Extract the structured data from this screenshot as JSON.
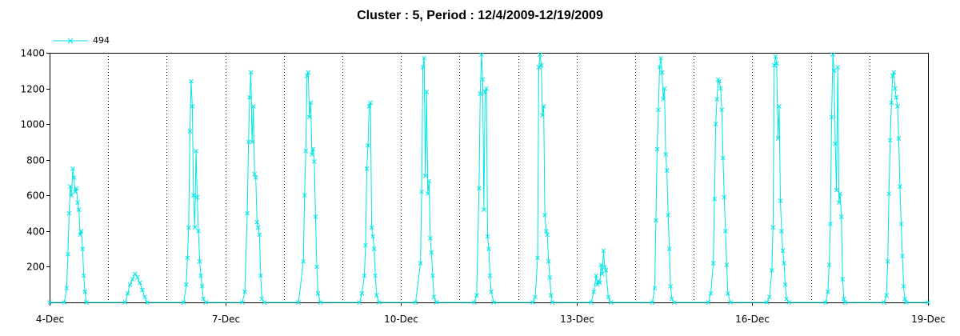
{
  "chart_data": {
    "type": "line",
    "title": "Cluster : 5, Period : 12/4/2009-12/19/2009",
    "xlabel": "",
    "ylabel": "",
    "x_unit": "date",
    "x_range": [
      "2009-12-04",
      "2009-12-19"
    ],
    "x_tick_labels": [
      "4-Dec",
      "7-Dec",
      "10-Dec",
      "13-Dec",
      "16-Dec",
      "19-Dec"
    ],
    "x_tick_dates": [
      "2009-12-04",
      "2009-12-07",
      "2009-12-10",
      "2009-12-13",
      "2009-12-16",
      "2009-12-19"
    ],
    "ylim": [
      0,
      1400
    ],
    "y_tick_labels": [
      "200",
      "400",
      "600",
      "800",
      "1000",
      "1200",
      "1400"
    ],
    "y_ticks": [
      200,
      400,
      600,
      800,
      1000,
      1200,
      1400
    ],
    "grid": "vertical dotted",
    "legend_position": "top-left",
    "series": [
      {
        "name": "494",
        "color": "#00e5e5",
        "marker": "x",
        "points": [
          [
            "2009-12-04 00:00",
            0
          ],
          [
            "2009-12-04 06:00",
            0
          ],
          [
            "2009-12-04 07:00",
            80
          ],
          [
            "2009-12-04 07:30",
            270
          ],
          [
            "2009-12-04 08:00",
            500
          ],
          [
            "2009-12-04 08:30",
            650
          ],
          [
            "2009-12-04 09:00",
            600
          ],
          [
            "2009-12-04 09:30",
            750
          ],
          [
            "2009-12-04 10:00",
            700
          ],
          [
            "2009-12-04 10:30",
            620
          ],
          [
            "2009-12-04 11:00",
            640
          ],
          [
            "2009-12-04 11:30",
            560
          ],
          [
            "2009-12-04 12:00",
            520
          ],
          [
            "2009-12-04 12:30",
            380
          ],
          [
            "2009-12-04 13:00",
            400
          ],
          [
            "2009-12-04 13:30",
            300
          ],
          [
            "2009-12-04 14:00",
            150
          ],
          [
            "2009-12-04 14:30",
            60
          ],
          [
            "2009-12-04 15:00",
            0
          ],
          [
            "2009-12-05 07:00",
            0
          ],
          [
            "2009-12-05 08:00",
            50
          ],
          [
            "2009-12-05 09:00",
            100
          ],
          [
            "2009-12-05 10:00",
            130
          ],
          [
            "2009-12-05 11:00",
            160
          ],
          [
            "2009-12-05 12:00",
            140
          ],
          [
            "2009-12-05 13:00",
            110
          ],
          [
            "2009-12-05 14:00",
            70
          ],
          [
            "2009-12-05 15:00",
            30
          ],
          [
            "2009-12-05 16:00",
            0
          ],
          [
            "2009-12-06 07:00",
            0
          ],
          [
            "2009-12-06 08:00",
            100
          ],
          [
            "2009-12-06 08:30",
            250
          ],
          [
            "2009-12-06 09:00",
            420
          ],
          [
            "2009-12-06 09:30",
            960
          ],
          [
            "2009-12-06 10:00",
            1240
          ],
          [
            "2009-12-06 10:30",
            1100
          ],
          [
            "2009-12-06 11:00",
            600
          ],
          [
            "2009-12-06 11:30",
            420
          ],
          [
            "2009-12-06 12:00",
            850
          ],
          [
            "2009-12-06 12:30",
            590
          ],
          [
            "2009-12-06 13:00",
            400
          ],
          [
            "2009-12-06 13:30",
            230
          ],
          [
            "2009-12-06 14:00",
            150
          ],
          [
            "2009-12-06 14:30",
            90
          ],
          [
            "2009-12-06 15:00",
            20
          ],
          [
            "2009-12-06 16:00",
            0
          ],
          [
            "2009-12-07 07:00",
            0
          ],
          [
            "2009-12-07 08:00",
            60
          ],
          [
            "2009-12-07 09:00",
            500
          ],
          [
            "2009-12-07 09:30",
            900
          ],
          [
            "2009-12-07 10:00",
            1150
          ],
          [
            "2009-12-07 10:30",
            1290
          ],
          [
            "2009-12-07 11:00",
            900
          ],
          [
            "2009-12-07 11:30",
            1100
          ],
          [
            "2009-12-07 12:00",
            720
          ],
          [
            "2009-12-07 12:30",
            700
          ],
          [
            "2009-12-07 13:00",
            450
          ],
          [
            "2009-12-07 13:30",
            420
          ],
          [
            "2009-12-07 14:00",
            380
          ],
          [
            "2009-12-07 14:30",
            150
          ],
          [
            "2009-12-07 15:00",
            20
          ],
          [
            "2009-12-07 16:00",
            0
          ],
          [
            "2009-12-08 06:00",
            0
          ],
          [
            "2009-12-08 08:00",
            230
          ],
          [
            "2009-12-08 08:30",
            600
          ],
          [
            "2009-12-08 09:00",
            850
          ],
          [
            "2009-12-08 09:30",
            1270
          ],
          [
            "2009-12-08 10:00",
            1290
          ],
          [
            "2009-12-08 10:30",
            1040
          ],
          [
            "2009-12-08 11:00",
            1120
          ],
          [
            "2009-12-08 11:30",
            830
          ],
          [
            "2009-12-08 12:00",
            860
          ],
          [
            "2009-12-08 12:30",
            790
          ],
          [
            "2009-12-08 13:00",
            480
          ],
          [
            "2009-12-08 13:30",
            200
          ],
          [
            "2009-12-08 14:00",
            50
          ],
          [
            "2009-12-08 15:00",
            0
          ],
          [
            "2009-12-09 07:00",
            0
          ],
          [
            "2009-12-09 08:00",
            50
          ],
          [
            "2009-12-09 09:00",
            150
          ],
          [
            "2009-12-09 09:30",
            320
          ],
          [
            "2009-12-09 10:00",
            750
          ],
          [
            "2009-12-09 10:30",
            880
          ],
          [
            "2009-12-09 11:00",
            1100
          ],
          [
            "2009-12-09 11:30",
            1120
          ],
          [
            "2009-12-09 12:00",
            420
          ],
          [
            "2009-12-09 12:30",
            370
          ],
          [
            "2009-12-09 13:00",
            300
          ],
          [
            "2009-12-09 13:30",
            150
          ],
          [
            "2009-12-09 14:00",
            40
          ],
          [
            "2009-12-09 15:00",
            0
          ],
          [
            "2009-12-10 06:00",
            0
          ],
          [
            "2009-12-10 08:00",
            220
          ],
          [
            "2009-12-10 08:30",
            620
          ],
          [
            "2009-12-10 09:00",
            1320
          ],
          [
            "2009-12-10 09:30",
            1370
          ],
          [
            "2009-12-10 10:00",
            710
          ],
          [
            "2009-12-10 10:30",
            1180
          ],
          [
            "2009-12-10 11:00",
            610
          ],
          [
            "2009-12-10 11:30",
            680
          ],
          [
            "2009-12-10 12:00",
            360
          ],
          [
            "2009-12-10 12:30",
            280
          ],
          [
            "2009-12-10 13:00",
            150
          ],
          [
            "2009-12-10 13:30",
            30
          ],
          [
            "2009-12-10 14:30",
            0
          ],
          [
            "2009-12-11 06:00",
            0
          ],
          [
            "2009-12-11 07:00",
            40
          ],
          [
            "2009-12-11 08:00",
            640
          ],
          [
            "2009-12-11 08:30",
            1170
          ],
          [
            "2009-12-11 09:00",
            1390
          ],
          [
            "2009-12-11 09:30",
            1250
          ],
          [
            "2009-12-11 10:00",
            520
          ],
          [
            "2009-12-11 10:30",
            1180
          ],
          [
            "2009-12-11 11:00",
            1200
          ],
          [
            "2009-12-11 11:30",
            370
          ],
          [
            "2009-12-11 12:00",
            300
          ],
          [
            "2009-12-11 12:30",
            150
          ],
          [
            "2009-12-11 13:00",
            60
          ],
          [
            "2009-12-11 14:00",
            0
          ],
          [
            "2009-12-12 06:00",
            0
          ],
          [
            "2009-12-12 07:00",
            30
          ],
          [
            "2009-12-12 08:00",
            250
          ],
          [
            "2009-12-12 08:30",
            1320
          ],
          [
            "2009-12-12 09:00",
            1390
          ],
          [
            "2009-12-12 09:30",
            1330
          ],
          [
            "2009-12-12 10:00",
            1050
          ],
          [
            "2009-12-12 10:30",
            1100
          ],
          [
            "2009-12-12 11:00",
            490
          ],
          [
            "2009-12-12 11:30",
            400
          ],
          [
            "2009-12-12 12:00",
            380
          ],
          [
            "2009-12-12 12:30",
            230
          ],
          [
            "2009-12-12 13:00",
            140
          ],
          [
            "2009-12-12 13:30",
            40
          ],
          [
            "2009-12-12 14:00",
            0
          ],
          [
            "2009-12-13 06:00",
            0
          ],
          [
            "2009-12-13 07:00",
            60
          ],
          [
            "2009-12-13 08:00",
            150
          ],
          [
            "2009-12-13 08:30",
            100
          ],
          [
            "2009-12-13 09:00",
            120
          ],
          [
            "2009-12-13 09:30",
            110
          ],
          [
            "2009-12-13 10:00",
            210
          ],
          [
            "2009-12-13 10:30",
            160
          ],
          [
            "2009-12-13 11:00",
            290
          ],
          [
            "2009-12-13 11:30",
            200
          ],
          [
            "2009-12-13 12:00",
            180
          ],
          [
            "2009-12-13 13:00",
            30
          ],
          [
            "2009-12-13 14:00",
            0
          ],
          [
            "2009-12-14 07:00",
            0
          ],
          [
            "2009-12-14 08:00",
            80
          ],
          [
            "2009-12-14 08:30",
            460
          ],
          [
            "2009-12-14 09:00",
            860
          ],
          [
            "2009-12-14 09:30",
            1080
          ],
          [
            "2009-12-14 10:00",
            1320
          ],
          [
            "2009-12-14 10:30",
            1370
          ],
          [
            "2009-12-14 11:00",
            1290
          ],
          [
            "2009-12-14 11:30",
            1140
          ],
          [
            "2009-12-14 12:00",
            1200
          ],
          [
            "2009-12-14 12:30",
            830
          ],
          [
            "2009-12-14 13:00",
            740
          ],
          [
            "2009-12-14 13:30",
            490
          ],
          [
            "2009-12-14 14:00",
            300
          ],
          [
            "2009-12-14 14:30",
            90
          ],
          [
            "2009-12-14 15:00",
            20
          ],
          [
            "2009-12-14 16:00",
            0
          ],
          [
            "2009-12-15 06:00",
            0
          ],
          [
            "2009-12-15 07:00",
            50
          ],
          [
            "2009-12-15 08:00",
            220
          ],
          [
            "2009-12-15 08:30",
            580
          ],
          [
            "2009-12-15 09:00",
            1000
          ],
          [
            "2009-12-15 09:30",
            1140
          ],
          [
            "2009-12-15 10:00",
            1250
          ],
          [
            "2009-12-15 10:30",
            1240
          ],
          [
            "2009-12-15 11:00",
            1200
          ],
          [
            "2009-12-15 11:30",
            1080
          ],
          [
            "2009-12-15 12:00",
            810
          ],
          [
            "2009-12-15 12:30",
            590
          ],
          [
            "2009-12-15 13:00",
            400
          ],
          [
            "2009-12-15 13:30",
            210
          ],
          [
            "2009-12-15 14:00",
            50
          ],
          [
            "2009-12-15 15:00",
            0
          ],
          [
            "2009-12-16 06:00",
            0
          ],
          [
            "2009-12-16 07:00",
            30
          ],
          [
            "2009-12-16 08:00",
            180
          ],
          [
            "2009-12-16 08:30",
            420
          ],
          [
            "2009-12-16 09:00",
            1330
          ],
          [
            "2009-12-16 09:30",
            1380
          ],
          [
            "2009-12-16 10:00",
            1340
          ],
          [
            "2009-12-16 10:30",
            920
          ],
          [
            "2009-12-16 11:00",
            1100
          ],
          [
            "2009-12-16 11:30",
            570
          ],
          [
            "2009-12-16 12:00",
            400
          ],
          [
            "2009-12-16 12:30",
            290
          ],
          [
            "2009-12-16 13:00",
            220
          ],
          [
            "2009-12-16 13:30",
            100
          ],
          [
            "2009-12-16 14:00",
            20
          ],
          [
            "2009-12-16 15:00",
            0
          ],
          [
            "2009-12-17 06:00",
            0
          ],
          [
            "2009-12-17 07:00",
            60
          ],
          [
            "2009-12-17 07:30",
            210
          ],
          [
            "2009-12-17 08:00",
            440
          ],
          [
            "2009-12-17 08:30",
            1040
          ],
          [
            "2009-12-17 09:00",
            1390
          ],
          [
            "2009-12-17 09:30",
            1300
          ],
          [
            "2009-12-17 10:00",
            890
          ],
          [
            "2009-12-17 10:30",
            630
          ],
          [
            "2009-12-17 11:00",
            1320
          ],
          [
            "2009-12-17 11:30",
            560
          ],
          [
            "2009-12-17 12:00",
            610
          ],
          [
            "2009-12-17 12:30",
            480
          ],
          [
            "2009-12-17 13:00",
            130
          ],
          [
            "2009-12-17 13:30",
            20
          ],
          [
            "2009-12-17 14:00",
            0
          ],
          [
            "2009-12-18 06:00",
            0
          ],
          [
            "2009-12-18 07:00",
            40
          ],
          [
            "2009-12-18 07:30",
            230
          ],
          [
            "2009-12-18 08:00",
            610
          ],
          [
            "2009-12-18 08:30",
            910
          ],
          [
            "2009-12-18 09:00",
            1120
          ],
          [
            "2009-12-18 09:30",
            1270
          ],
          [
            "2009-12-18 10:00",
            1290
          ],
          [
            "2009-12-18 10:30",
            1200
          ],
          [
            "2009-12-18 11:00",
            1150
          ],
          [
            "2009-12-18 11:30",
            1100
          ],
          [
            "2009-12-18 12:00",
            920
          ],
          [
            "2009-12-18 12:30",
            650
          ],
          [
            "2009-12-18 13:00",
            440
          ],
          [
            "2009-12-18 13:30",
            260
          ],
          [
            "2009-12-18 14:00",
            90
          ],
          [
            "2009-12-18 14:30",
            20
          ],
          [
            "2009-12-18 15:00",
            0
          ],
          [
            "2009-12-19 00:00",
            0
          ]
        ]
      }
    ]
  }
}
